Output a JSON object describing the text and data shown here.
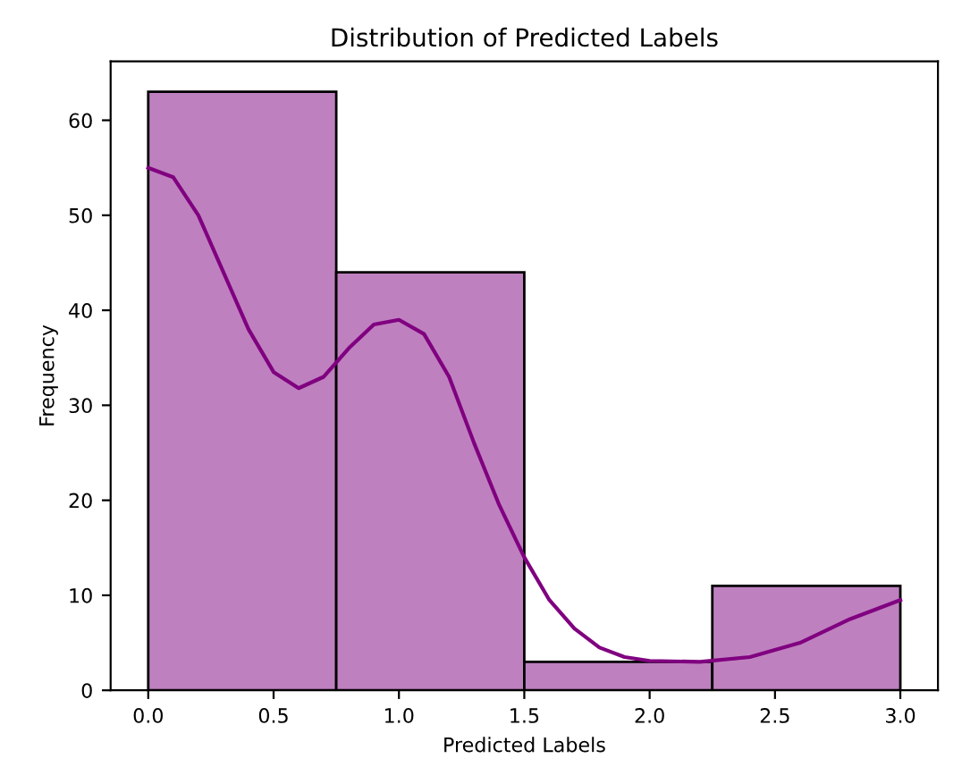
{
  "chart_data": {
    "type": "histogram",
    "title": "Distribution of Predicted Labels",
    "xlabel": "Predicted Labels",
    "ylabel": "Frequency",
    "series": [
      {
        "bins": [
          0,
          0.75,
          1.5,
          2.25,
          3.0
        ],
        "values": [
          63,
          44,
          3,
          11
        ],
        "color": "#bf80bf"
      },
      {
        "type": "line",
        "x": [
          0,
          0.1,
          0.2,
          0.3,
          0.4,
          0.5,
          0.6,
          0.7,
          0.8,
          0.9,
          1.0,
          1.1,
          1.2,
          1.3,
          1.4,
          1.5,
          1.6,
          1.7,
          1.8,
          1.9,
          2.0,
          2.2,
          2.4,
          2.6,
          2.8,
          3.0
        ],
        "values": [
          55,
          54,
          50,
          44,
          38,
          33.5,
          31.8,
          33,
          36,
          38.5,
          39,
          37.5,
          33,
          26,
          19.5,
          14,
          9.5,
          6.5,
          4.5,
          3.5,
          3.1,
          3,
          3.5,
          5,
          7.5,
          9.5
        ],
        "color": "#800080"
      }
    ],
    "xlim": [
      -0.15,
      3.15
    ],
    "ylim": [
      0,
      66.2
    ],
    "xticks": [
      {
        "value": 0,
        "label": "0.0"
      },
      {
        "value": 0.5,
        "label": "0.5"
      },
      {
        "value": 1,
        "label": "1.0"
      },
      {
        "value": 1.5,
        "label": "1.5"
      },
      {
        "value": 2,
        "label": "2.0"
      },
      {
        "value": 2.5,
        "label": "2.5"
      },
      {
        "value": 3,
        "label": "3.0"
      }
    ],
    "yticks": [
      0,
      10,
      20,
      30,
      40,
      50,
      60
    ],
    "grid": false
  }
}
